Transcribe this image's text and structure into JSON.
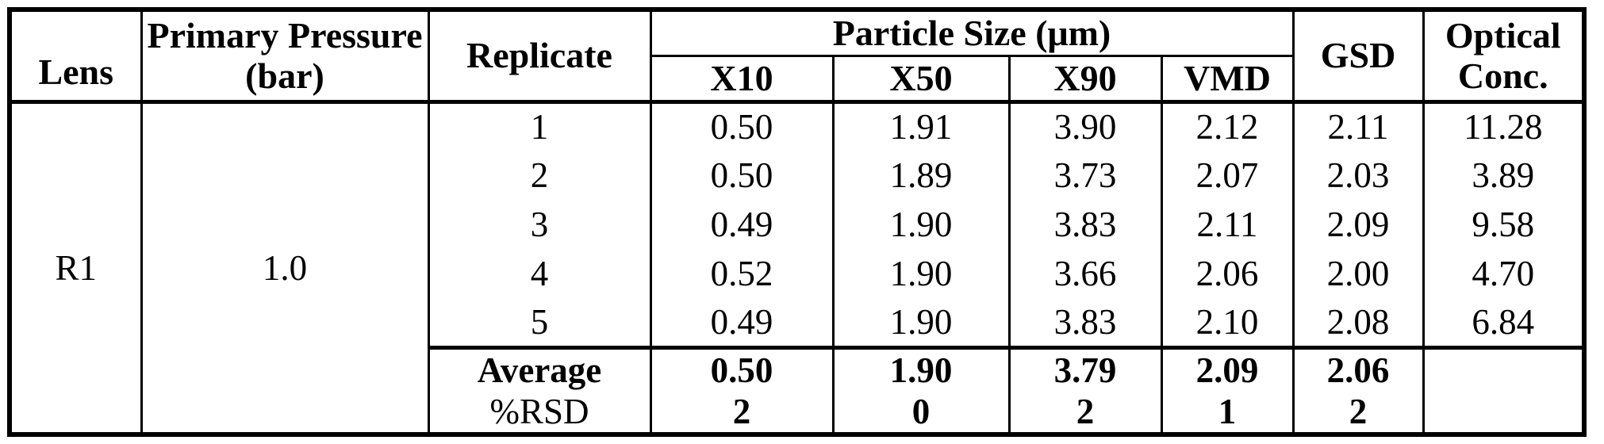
{
  "table": {
    "headers": {
      "lens": "Lens",
      "pressure": "Primary Pressure (bar)",
      "replicate": "Replicate",
      "particle_size": "Particle Size (μm)",
      "x10": "X10",
      "x50": "X50",
      "x90": "X90",
      "vmd": "VMD",
      "gsd": "GSD",
      "optical": "Optical Conc."
    },
    "body": {
      "lens": "R1",
      "pressure": "1.0",
      "rows": [
        {
          "replicate": "1",
          "x10": "0.50",
          "x50": "1.91",
          "x90": "3.90",
          "vmd": "2.12",
          "gsd": "2.11",
          "optical": "11.28"
        },
        {
          "replicate": "2",
          "x10": "0.50",
          "x50": "1.89",
          "x90": "3.73",
          "vmd": "2.07",
          "gsd": "2.03",
          "optical": "3.89"
        },
        {
          "replicate": "3",
          "x10": "0.49",
          "x50": "1.90",
          "x90": "3.83",
          "vmd": "2.11",
          "gsd": "2.09",
          "optical": "9.58"
        },
        {
          "replicate": "4",
          "x10": "0.52",
          "x50": "1.90",
          "x90": "3.66",
          "vmd": "2.06",
          "gsd": "2.00",
          "optical": "4.70"
        },
        {
          "replicate": "5",
          "x10": "0.49",
          "x50": "1.90",
          "x90": "3.83",
          "vmd": "2.10",
          "gsd": "2.08",
          "optical": "6.84"
        }
      ],
      "average": {
        "label": "Average",
        "x10": "0.50",
        "x50": "1.90",
        "x90": "3.79",
        "vmd": "2.09",
        "gsd": "2.06",
        "optical": ""
      },
      "rsd": {
        "label": "%RSD",
        "x10": "2",
        "x50": "0",
        "x90": "2",
        "vmd": "1",
        "gsd": "2",
        "optical": ""
      }
    },
    "colors": {
      "text": "#000000",
      "border": "#000000",
      "background": "#ffffff"
    }
  }
}
